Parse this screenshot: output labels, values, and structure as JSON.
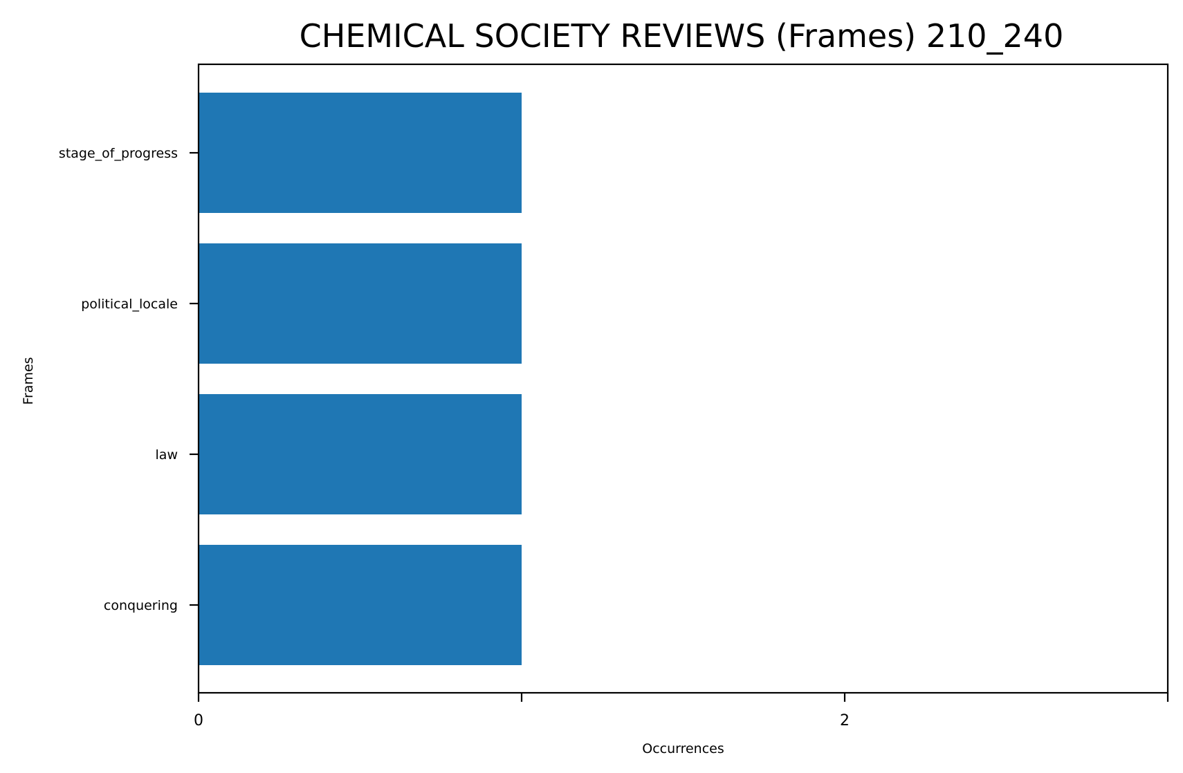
{
  "chart_data": {
    "type": "bar",
    "orientation": "horizontal",
    "title": "CHEMICAL SOCIETY REVIEWS (Frames) 210_240",
    "xlabel": "Occurrences",
    "ylabel": "Frames",
    "categories": [
      "stage_of_progress",
      "political_locale",
      "law",
      "conquering"
    ],
    "values": [
      1,
      1,
      1,
      1
    ],
    "xlim": [
      0,
      3
    ],
    "xticks": [
      0,
      1,
      2,
      3
    ],
    "xtick_labels": [
      "0",
      "",
      "2",
      ""
    ],
    "grid": false,
    "legend": "none",
    "bar_color": "#1f77b4"
  }
}
